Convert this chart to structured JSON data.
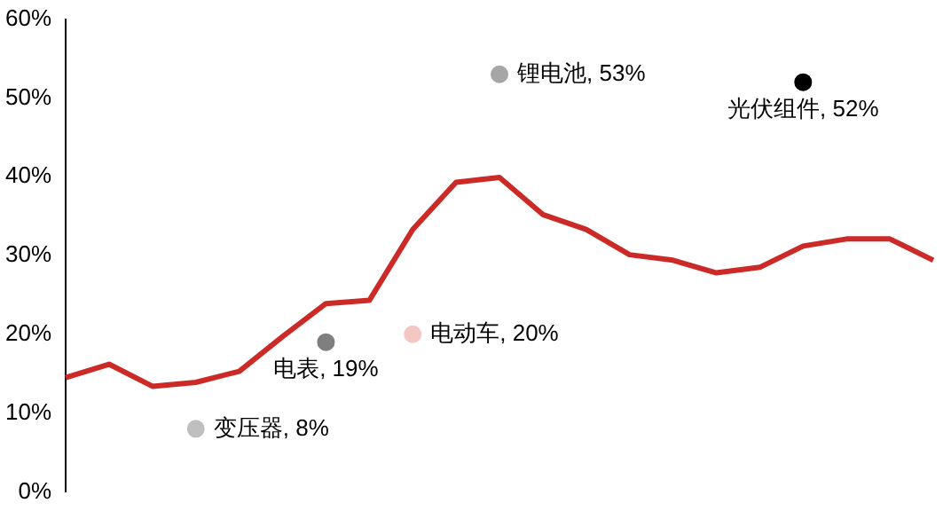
{
  "chart_data": {
    "type": "line",
    "categories": [
      null,
      null,
      null,
      null,
      null,
      null,
      null,
      null,
      null,
      null,
      null,
      null,
      null,
      null,
      null,
      null,
      null,
      null,
      null,
      null,
      null
    ],
    "series": [
      {
        "color": "#cc2a27",
        "marker": "none",
        "values": [
          14.5,
          16.2,
          13.4,
          13.9,
          15.3,
          19.7,
          23.9,
          24.3,
          33.3,
          39.3,
          39.9,
          35.2,
          33.3,
          30.1,
          29.4,
          27.8,
          28.5,
          31.2,
          32.1,
          32.1,
          29.4
        ]
      },
      {
        "type": "scatter",
        "marker": "circle",
        "color": "#a6a6a6",
        "values": [
          null,
          null,
          null,
          null,
          null,
          null,
          null,
          null,
          null,
          null,
          53,
          null,
          null,
          null,
          null,
          null,
          null,
          null,
          null,
          null,
          null
        ],
        "value_labels": [
          null,
          null,
          null,
          null,
          null,
          null,
          null,
          null,
          null,
          null,
          "锂电池, 53%",
          null,
          null,
          null,
          null,
          null,
          null,
          null,
          null,
          null,
          null
        ]
      },
      {
        "type": "scatter",
        "marker": "circle",
        "color": "#000000",
        "values": [
          null,
          null,
          null,
          null,
          null,
          null,
          null,
          null,
          null,
          null,
          null,
          null,
          null,
          null,
          null,
          null,
          null,
          52,
          null,
          null,
          null
        ],
        "value_labels": [
          null,
          null,
          null,
          null,
          null,
          null,
          null,
          null,
          null,
          null,
          null,
          null,
          null,
          null,
          null,
          null,
          null,
          "光伏组件, 52%",
          null,
          null,
          null
        ]
      },
      {
        "type": "scatter",
        "marker": "circle",
        "color": "#f4c7c3",
        "values": [
          null,
          null,
          null,
          null,
          null,
          null,
          null,
          null,
          20,
          null,
          null,
          null,
          null,
          null,
          null,
          null,
          null,
          null,
          null,
          null,
          null
        ],
        "value_labels": [
          null,
          null,
          null,
          null,
          null,
          null,
          null,
          null,
          "电动车, 20%",
          null,
          null,
          null,
          null,
          null,
          null,
          null,
          null,
          null,
          null,
          null,
          null
        ]
      },
      {
        "type": "scatter",
        "marker": "circle",
        "color": "#7f7f7f",
        "values": [
          null,
          null,
          null,
          null,
          null,
          null,
          19,
          null,
          null,
          null,
          null,
          null,
          null,
          null,
          null,
          null,
          null,
          null,
          null,
          null,
          null
        ],
        "value_labels": [
          null,
          null,
          null,
          null,
          null,
          null,
          "电表, 19%",
          null,
          null,
          null,
          null,
          null,
          null,
          null,
          null,
          null,
          null,
          null,
          null,
          null,
          null
        ]
      },
      {
        "type": "scatter",
        "marker": "circle",
        "color": "#bfbfbf",
        "values": [
          null,
          null,
          null,
          8,
          null,
          null,
          null,
          null,
          null,
          null,
          null,
          null,
          null,
          null,
          null,
          null,
          null,
          null,
          null,
          null,
          null
        ],
        "value_labels": [
          null,
          null,
          null,
          "变压器, 8%",
          null,
          null,
          null,
          null,
          null,
          null,
          null,
          null,
          null,
          null,
          null,
          null,
          null,
          null,
          null,
          null,
          null
        ]
      }
    ],
    "ylim": [
      0,
      60
    ],
    "yticks": [
      {
        "value": 0,
        "label": "0%"
      },
      {
        "value": 10,
        "label": "10%"
      },
      {
        "value": 20,
        "label": "20%"
      },
      {
        "value": 30,
        "label": "30%"
      },
      {
        "value": 40,
        "label": "40%"
      },
      {
        "value": 50,
        "label": "50%"
      },
      {
        "value": 60,
        "label": "60%"
      }
    ],
    "tick_labels": "y",
    "grid": false,
    "legend": false,
    "line_style": "solid"
  }
}
